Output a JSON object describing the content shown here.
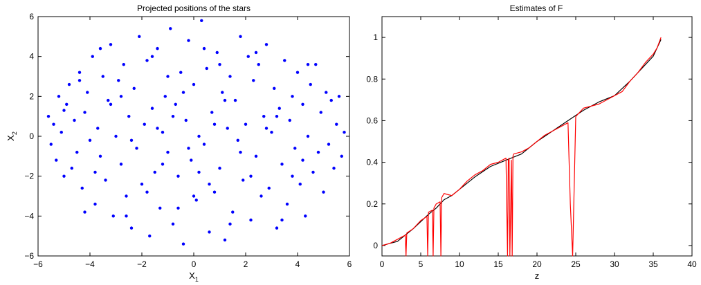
{
  "chart_data": [
    {
      "id": "left",
      "type": "scatter",
      "title": "Projected positions of the stars",
      "xlabel": {
        "main": "X",
        "sub": "1"
      },
      "ylabel": {
        "main": "X",
        "sub": "2"
      },
      "xlim": [
        -6,
        6
      ],
      "ylim": [
        -6,
        6
      ],
      "xticks": [
        -6,
        -4,
        -2,
        0,
        2,
        4,
        6
      ],
      "yticks": [
        -6,
        -4,
        -2,
        0,
        2,
        4,
        6
      ],
      "xtick_labels": [
        "−6",
        "−4",
        "−2",
        "0",
        "2",
        "4",
        "6"
      ],
      "ytick_labels": [
        "−6",
        "−4",
        "−2",
        "0",
        "2",
        "4",
        "6"
      ],
      "grid": false,
      "legend": "none",
      "marker_color": "#0000ff",
      "points": [
        [
          -5.6,
          1.0
        ],
        [
          -5.4,
          0.6
        ],
        [
          -5.5,
          -0.4
        ],
        [
          -5.2,
          2.0
        ],
        [
          -5.3,
          -1.2
        ],
        [
          -5.1,
          0.2
        ],
        [
          -5.0,
          -2.0
        ],
        [
          -4.9,
          1.6
        ],
        [
          -4.8,
          2.6
        ],
        [
          -4.7,
          -1.6
        ],
        [
          -4.6,
          0.8
        ],
        [
          -4.5,
          -0.8
        ],
        [
          -4.4,
          3.2
        ],
        [
          -4.3,
          -2.6
        ],
        [
          -4.2,
          1.2
        ],
        [
          -4.1,
          2.2
        ],
        [
          -4.0,
          -0.2
        ],
        [
          -3.9,
          4.0
        ],
        [
          -3.8,
          -3.4
        ],
        [
          -3.7,
          0.4
        ],
        [
          -3.6,
          -1.0
        ],
        [
          -3.5,
          3.0
        ],
        [
          -3.4,
          -2.2
        ],
        [
          -3.3,
          1.8
        ],
        [
          -3.2,
          4.6
        ],
        [
          -3.1,
          -4.0
        ],
        [
          -3.0,
          0.0
        ],
        [
          -2.9,
          2.8
        ],
        [
          -2.8,
          -1.4
        ],
        [
          -2.7,
          3.6
        ],
        [
          -2.6,
          -3.0
        ],
        [
          -2.5,
          1.0
        ],
        [
          -2.4,
          -4.6
        ],
        [
          -2.3,
          2.4
        ],
        [
          -2.2,
          -0.6
        ],
        [
          -2.1,
          5.0
        ],
        [
          -2.0,
          -2.4
        ],
        [
          -1.9,
          0.6
        ],
        [
          -1.8,
          3.8
        ],
        [
          -1.7,
          -5.0
        ],
        [
          -1.6,
          1.4
        ],
        [
          -1.5,
          -1.8
        ],
        [
          -1.4,
          4.4
        ],
        [
          -1.3,
          -3.6
        ],
        [
          -1.2,
          0.2
        ],
        [
          -1.1,
          2.0
        ],
        [
          -1.0,
          -0.8
        ],
        [
          -0.9,
          5.4
        ],
        [
          -0.8,
          -4.4
        ],
        [
          -0.7,
          1.6
        ],
        [
          -0.6,
          -2.0
        ],
        [
          -0.5,
          3.2
        ],
        [
          -0.4,
          -5.4
        ],
        [
          -0.3,
          0.8
        ],
        [
          -0.2,
          4.8
        ],
        [
          -0.1,
          -1.2
        ],
        [
          0.0,
          2.6
        ],
        [
          0.1,
          -3.2
        ],
        [
          0.2,
          0.0
        ],
        [
          0.3,
          5.8
        ],
        [
          0.4,
          -0.4
        ],
        [
          0.5,
          3.4
        ],
        [
          0.6,
          -4.8
        ],
        [
          0.7,
          1.2
        ],
        [
          0.8,
          -2.8
        ],
        [
          0.9,
          4.2
        ],
        [
          1.0,
          -1.6
        ],
        [
          1.1,
          2.2
        ],
        [
          1.2,
          -5.2
        ],
        [
          1.3,
          0.4
        ],
        [
          1.4,
          3.0
        ],
        [
          1.5,
          -3.8
        ],
        [
          1.6,
          1.8
        ],
        [
          1.7,
          -0.2
        ],
        [
          1.8,
          5.0
        ],
        [
          1.9,
          -2.2
        ],
        [
          2.0,
          0.6
        ],
        [
          2.1,
          4.0
        ],
        [
          2.2,
          -4.2
        ],
        [
          2.3,
          2.8
        ],
        [
          2.4,
          -1.0
        ],
        [
          2.5,
          3.6
        ],
        [
          2.6,
          -3.0
        ],
        [
          2.7,
          1.0
        ],
        [
          2.8,
          4.6
        ],
        [
          2.9,
          -2.6
        ],
        [
          3.0,
          0.2
        ],
        [
          3.1,
          2.4
        ],
        [
          3.2,
          -4.6
        ],
        [
          3.3,
          1.4
        ],
        [
          3.4,
          -1.4
        ],
        [
          3.5,
          3.8
        ],
        [
          3.6,
          -3.4
        ],
        [
          3.7,
          0.8
        ],
        [
          3.8,
          2.0
        ],
        [
          3.9,
          -0.6
        ],
        [
          4.0,
          3.2
        ],
        [
          4.1,
          -2.4
        ],
        [
          4.2,
          1.6
        ],
        [
          4.3,
          -4.0
        ],
        [
          4.4,
          0.0
        ],
        [
          4.5,
          2.6
        ],
        [
          4.6,
          -1.8
        ],
        [
          4.7,
          3.6
        ],
        [
          4.8,
          -0.8
        ],
        [
          4.9,
          1.2
        ],
        [
          5.0,
          -2.8
        ],
        [
          5.1,
          2.2
        ],
        [
          5.2,
          -0.4
        ],
        [
          5.3,
          1.8
        ],
        [
          5.4,
          -1.6
        ],
        [
          5.5,
          0.6
        ],
        [
          5.6,
          2.0
        ],
        [
          5.7,
          -1.0
        ],
        [
          5.8,
          0.2
        ],
        [
          -5.0,
          1.3
        ],
        [
          -4.2,
          -3.8
        ],
        [
          -3.6,
          4.4
        ],
        [
          -2.6,
          -4.0
        ],
        [
          -1.6,
          4.0
        ],
        [
          -0.6,
          -3.6
        ],
        [
          0.4,
          4.4
        ],
        [
          1.4,
          -4.4
        ],
        [
          2.4,
          4.2
        ],
        [
          3.4,
          -4.2
        ],
        [
          4.4,
          3.6
        ],
        [
          -4.4,
          2.8
        ],
        [
          -3.8,
          -1.8
        ],
        [
          -2.8,
          2.0
        ],
        [
          -1.8,
          -2.8
        ],
        [
          -0.8,
          1.0
        ],
        [
          0.2,
          -1.8
        ],
        [
          1.2,
          1.8
        ],
        [
          2.2,
          -2.0
        ],
        [
          3.2,
          1.0
        ],
        [
          4.2,
          -1.2
        ],
        [
          -1.4,
          0.4
        ],
        [
          -0.2,
          -0.6
        ],
        [
          0.8,
          0.6
        ],
        [
          1.8,
          -0.8
        ],
        [
          -2.4,
          -0.2
        ],
        [
          -3.2,
          1.6
        ],
        [
          2.8,
          0.4
        ],
        [
          3.8,
          -2.0
        ],
        [
          -1.0,
          3.0
        ],
        [
          0.0,
          -3.0
        ],
        [
          1.0,
          3.6
        ],
        [
          -0.4,
          2.2
        ],
        [
          0.6,
          -2.4
        ],
        [
          -1.2,
          -1.4
        ]
      ]
    },
    {
      "id": "right",
      "type": "line",
      "title": "Estimates of F",
      "xlabel": "z",
      "ylabel": "",
      "xlim": [
        0,
        40
      ],
      "ylim": [
        -0.05,
        1.1
      ],
      "xticks": [
        0,
        5,
        10,
        15,
        20,
        25,
        30,
        35,
        40
      ],
      "yticks": [
        0,
        0.2,
        0.4,
        0.6,
        0.8,
        1
      ],
      "xtick_labels": [
        "0",
        "5",
        "10",
        "15",
        "20",
        "25",
        "30",
        "35",
        "40"
      ],
      "ytick_labels": [
        "0",
        "0.2",
        "0.4",
        "0.6",
        "0.8",
        "1"
      ],
      "grid": false,
      "legend": "none",
      "series": [
        {
          "color": "#000000",
          "x": [
            0,
            2,
            4,
            6,
            7,
            8,
            9,
            10,
            12,
            14,
            16,
            18,
            20,
            22,
            24,
            26,
            28,
            30,
            32,
            34,
            35,
            36
          ],
          "y": [
            0.0,
            0.02,
            0.08,
            0.15,
            0.18,
            0.22,
            0.24,
            0.27,
            0.33,
            0.38,
            0.41,
            0.44,
            0.5,
            0.55,
            0.6,
            0.65,
            0.69,
            0.72,
            0.79,
            0.87,
            0.91,
            0.99
          ]
        },
        {
          "color": "#ff0000",
          "x": [
            0,
            1,
            2,
            3,
            3.1,
            3.2,
            4,
            5,
            5.8,
            5.9,
            6,
            6.5,
            6.6,
            6.7,
            7,
            7.5,
            7.6,
            7.7,
            8,
            9,
            10,
            11,
            12,
            13,
            14,
            15,
            16,
            16.2,
            16.3,
            16.4,
            16.5,
            16.7,
            16.8,
            16.9,
            17,
            18,
            19,
            20,
            21,
            22,
            23,
            23.5,
            24,
            24.3,
            24.6,
            25,
            26,
            27,
            28,
            29,
            30,
            31,
            32,
            33,
            34,
            35,
            35.5,
            36
          ],
          "y": [
            0.0,
            0.01,
            0.03,
            0.05,
            -0.05,
            0.06,
            0.08,
            0.12,
            0.14,
            -0.05,
            0.16,
            0.17,
            -0.05,
            0.18,
            0.2,
            0.21,
            -0.05,
            0.23,
            0.25,
            0.24,
            0.27,
            0.31,
            0.34,
            0.36,
            0.39,
            0.4,
            0.42,
            -0.05,
            0.41,
            0.42,
            -0.05,
            0.41,
            -0.05,
            0.43,
            0.44,
            0.45,
            0.47,
            0.5,
            0.53,
            0.55,
            0.57,
            0.58,
            0.59,
            0.2,
            -0.05,
            0.62,
            0.66,
            0.67,
            0.68,
            0.7,
            0.72,
            0.74,
            0.79,
            0.83,
            0.88,
            0.92,
            0.95,
            1.0
          ]
        }
      ]
    }
  ]
}
